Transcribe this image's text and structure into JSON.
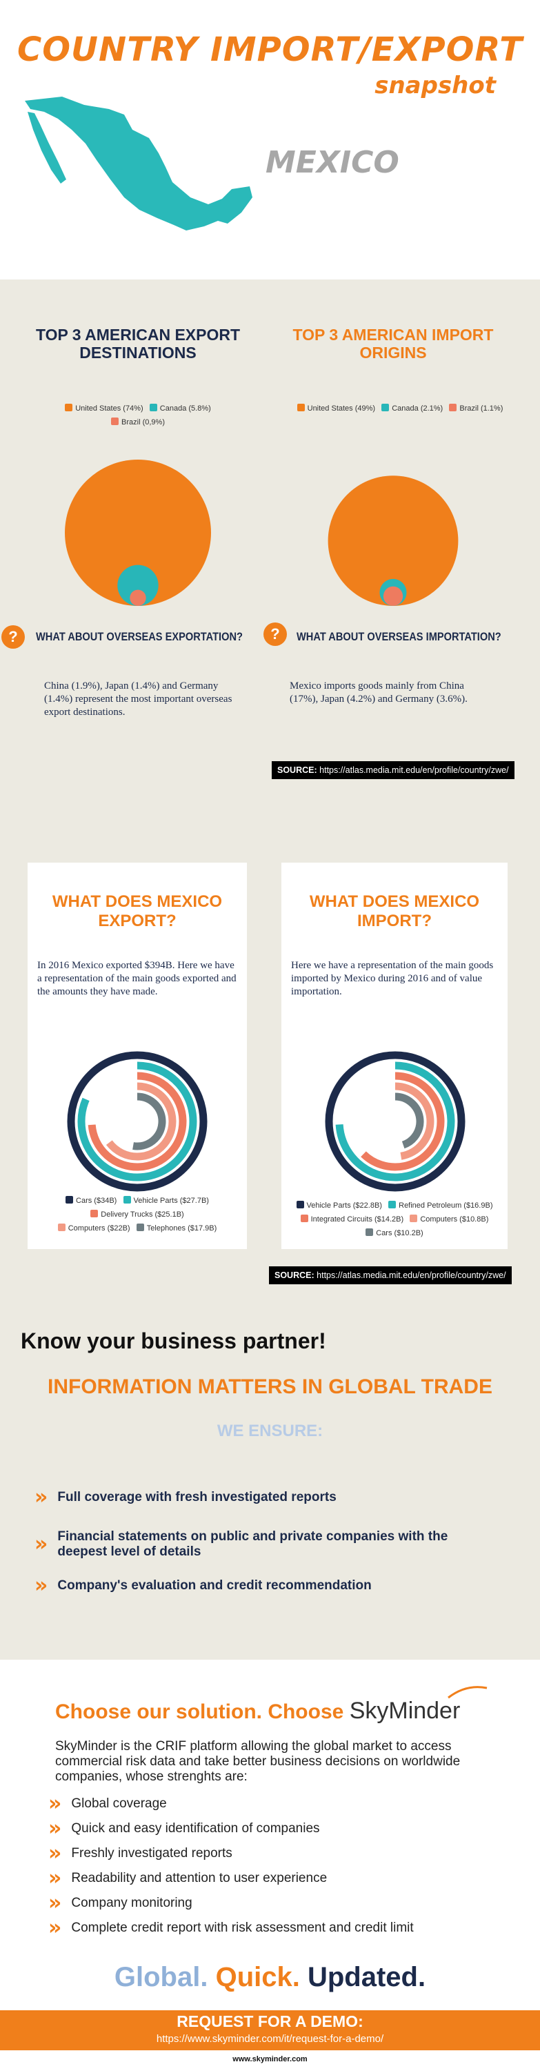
{
  "header": {
    "title": "COUNTRY IMPORT/EXPORT",
    "subtitle": "snapshot",
    "country": "MEXICO"
  },
  "colors": {
    "orange": "#f07f1b",
    "navy": "#1c2a4a",
    "teal": "#28b6b8",
    "salmon": "#ee7b5f",
    "gray": "#6e7d82",
    "beige": "#eceae1"
  },
  "export_destinations": {
    "title": "TOP 3 AMERICAN EXPORT DESTINATIONS",
    "legend": [
      "United States (74%)",
      "Canada (5.8%)",
      "Brazil (0,9%)"
    ],
    "question": "WHAT ABOUT OVERSEAS EXPORTATION?",
    "text": "China (1.9%), Japan (1.4%) and Germany (1.4%) represent the most important overseas export destinations."
  },
  "import_origins": {
    "title": "TOP 3 AMERICAN IMPORT ORIGINS",
    "legend": [
      "United States (49%)",
      "Canada (2.1%)",
      "Brazil (1.1%)"
    ],
    "question": "WHAT ABOUT OVERSEAS IMPORTATION?",
    "text": "Mexico imports goods mainly from China (17%), Japan (4.2%) and Germany (3.6%)."
  },
  "source": {
    "label": "SOURCE:",
    "url": "https://atlas.media.mit.edu/en/profile/country/zwe/"
  },
  "exports_card": {
    "title": "WHAT DOES MEXICO EXPORT?",
    "text": "In 2016 Mexico exported $394B.  Here we have a representation of the main goods exported and the amounts they have made.",
    "legend": [
      "Cars ($34B)",
      "Vehicle Parts ($27.7B)",
      "Delivery Trucks ($25.1B)",
      "Computers ($22B)",
      "Telephones ($17.9B)"
    ]
  },
  "imports_card": {
    "title": "WHAT DOES MEXICO IMPORT?",
    "text": "Here we have a representation of the main goods imported by Mexico  during 2016 and of value importation.",
    "legend": [
      "Vehicle Parts ($22.8B)",
      "Refined Petroleum ($16.9B)",
      "Integrated Circuits ($14.2B)",
      "Computers ($10.8B)",
      "Cars ($10.2B)"
    ]
  },
  "chart_data": [
    {
      "type": "bubble",
      "title": "TOP 3 AMERICAN EXPORT DESTINATIONS",
      "categories": [
        "United States",
        "Canada",
        "Brazil"
      ],
      "values": [
        74,
        5.8,
        0.9
      ],
      "unit": "%"
    },
    {
      "type": "bubble",
      "title": "TOP 3 AMERICAN IMPORT ORIGINS",
      "categories": [
        "United States",
        "Canada",
        "Brazil"
      ],
      "values": [
        49,
        2.1,
        1.1
      ],
      "unit": "%"
    },
    {
      "type": "radial-bar",
      "title": "WHAT DOES MEXICO EXPORT?",
      "categories": [
        "Cars",
        "Vehicle Parts",
        "Delivery Trucks",
        "Computers",
        "Telephones"
      ],
      "values": [
        34,
        27.7,
        25.1,
        22,
        17.9
      ],
      "unit": "$B",
      "max": 34
    },
    {
      "type": "radial-bar",
      "title": "WHAT DOES MEXICO IMPORT?",
      "categories": [
        "Vehicle Parts",
        "Refined Petroleum",
        "Integrated Circuits",
        "Computers",
        "Cars"
      ],
      "values": [
        22.8,
        16.9,
        14.2,
        10.8,
        10.2
      ],
      "unit": "$B",
      "max": 22.8
    }
  ],
  "partner": {
    "heading": "Know your business partner!",
    "subheading": "INFORMATION MATTERS IN GLOBAL TRADE",
    "ensure": "WE ENSURE:",
    "bullets": [
      "Full coverage with fresh investigated reports",
      "Financial statements on public and private companies with the deepest level of details",
      "Company's evaluation and credit recommendation"
    ]
  },
  "solution": {
    "heading": "Choose our solution. Choose",
    "brand": "SkyMinder",
    "intro": "SkyMinder is the CRIF platform allowing the global market to access commercial risk data and take better business decisions on worldwide companies, whose strenghts are:",
    "features": [
      "Global coverage",
      "Quick and easy identification of companies",
      "Freshly investigated reports",
      "Readability and attention to user experience",
      "Company monitoring",
      "Complete credit report with risk assessment and credit limit"
    ],
    "slogan": [
      "Global.",
      "Quick.",
      "Updated."
    ]
  },
  "demo": {
    "label": "REQUEST FOR A DEMO:",
    "url": "https://www.skyminder.com/it/request-for-a-demo/"
  },
  "footer": "www.skyminder.com"
}
